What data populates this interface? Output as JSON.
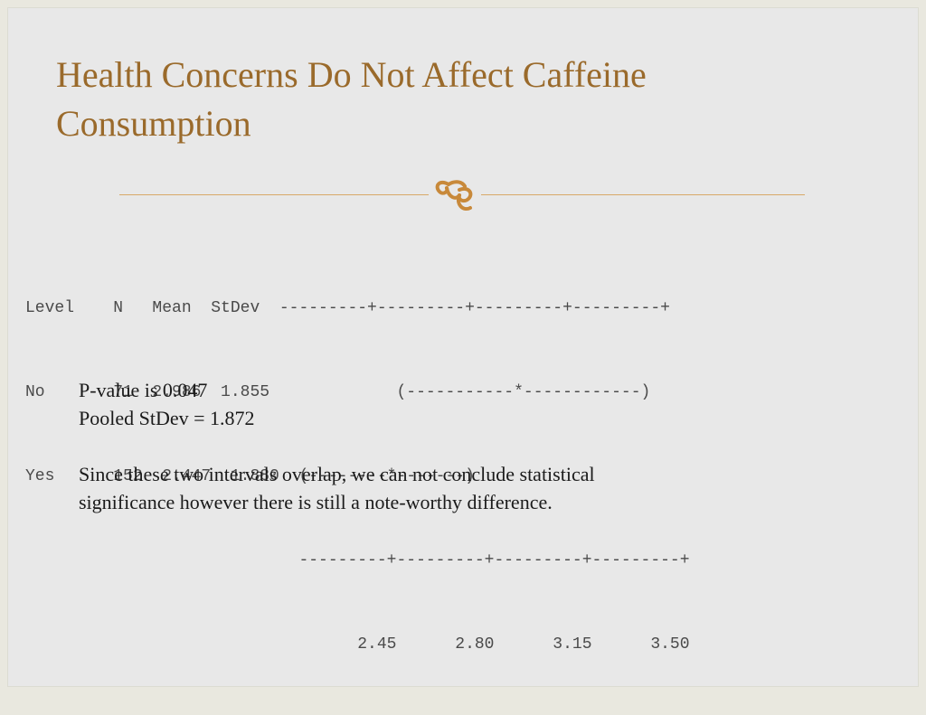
{
  "slide": {
    "title_line1": "Health Concerns Do Not Affect Caffeine",
    "title_line2": "Consumption",
    "divider_icon": "swirl-ornament-icon",
    "accent_color": "#9a6a2b",
    "output": {
      "header": "Level    N   Mean  StDev  ---------+---------+---------+---------+",
      "row_no": "No       71  2.986  1.855             (-----------*------------)",
      "row_yes": "Yes      152  2.447  1.880  (--------*-------)",
      "axis_line": "                            ---------+---------+---------+---------+",
      "axis_ticks": "                                  2.45      2.80      3.15      3.50"
    },
    "pvalue": "P-value is 0.047",
    "pooled": "Pooled StDev = 1.872",
    "conclusion_line1": "Since these two intervals overlap, we can not conclude statistical",
    "conclusion_line2": "significance however there is still a  note-worthy difference."
  }
}
